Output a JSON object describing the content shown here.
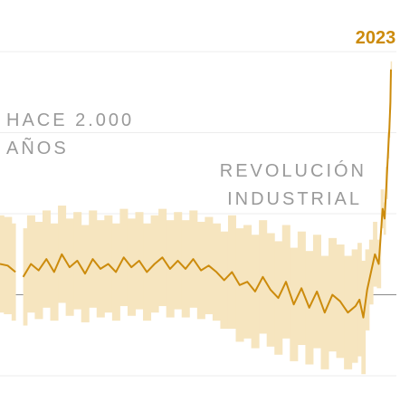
{
  "chart_data": {
    "type": "line",
    "end_label": "2023",
    "annotations": [
      [
        "HACE 2.000",
        "AÑOS"
      ],
      [
        "REVOLUCIÓN",
        "INDUSTRIAL"
      ]
    ],
    "color": "#cc8b0c",
    "band_color": "#f6e5bf",
    "xlim": [
      0,
      2023
    ],
    "ylim": [
      -0.5,
      1.5
    ],
    "yticks": [
      -0.5,
      0,
      0.5,
      1,
      1.5
    ],
    "grid": true,
    "x": [
      0,
      40,
      80,
      100,
      120,
      160,
      200,
      240,
      280,
      320,
      360,
      400,
      440,
      480,
      520,
      560,
      600,
      640,
      680,
      720,
      760,
      800,
      840,
      880,
      920,
      960,
      1000,
      1040,
      1080,
      1120,
      1160,
      1200,
      1240,
      1280,
      1320,
      1360,
      1400,
      1440,
      1480,
      1520,
      1560,
      1600,
      1640,
      1680,
      1720,
      1760,
      1800,
      1840,
      1860,
      1880,
      1900,
      1920,
      1940,
      1960,
      1980,
      1990,
      2000,
      2010,
      2015,
      2020,
      2023
    ],
    "values": [
      0.19,
      0.18,
      0.14,
      null,
      0.11,
      0.19,
      0.15,
      0.22,
      0.14,
      0.25,
      0.17,
      0.21,
      0.13,
      0.22,
      0.16,
      0.19,
      0.14,
      0.23,
      0.17,
      0.21,
      0.14,
      0.19,
      0.23,
      0.16,
      0.21,
      0.16,
      0.22,
      0.15,
      0.18,
      0.14,
      0.09,
      0.14,
      0.06,
      0.08,
      0.02,
      0.11,
      0.03,
      -0.02,
      0.08,
      -0.06,
      0.04,
      -0.08,
      0.02,
      -0.11,
      0,
      -0.04,
      -0.11,
      -0.07,
      -0.03,
      -0.14,
      0.03,
      0.14,
      0.25,
      0.19,
      0.53,
      0.47,
      0.69,
      0.92,
      1.03,
      1.19,
      1.39
    ],
    "error": [
      0.3,
      0.3,
      0.3,
      null,
      0.3,
      0.3,
      0.3,
      0.3,
      0.3,
      0.3,
      0.3,
      0.3,
      0.3,
      0.3,
      0.3,
      0.3,
      0.3,
      0.3,
      0.3,
      0.3,
      0.3,
      0.3,
      0.3,
      0.3,
      0.3,
      0.3,
      0.3,
      0.3,
      0.3,
      0.3,
      0.3,
      0.35,
      0.35,
      0.35,
      0.35,
      0.35,
      0.35,
      0.35,
      0.35,
      0.35,
      0.35,
      0.35,
      0.35,
      0.35,
      0.35,
      0.35,
      0.35,
      0.35,
      0.35,
      0.35,
      0.25,
      0.2,
      0.2,
      0.15,
      0.12,
      0.1,
      0.1,
      0.08,
      0.06,
      0.05,
      0.05
    ]
  }
}
